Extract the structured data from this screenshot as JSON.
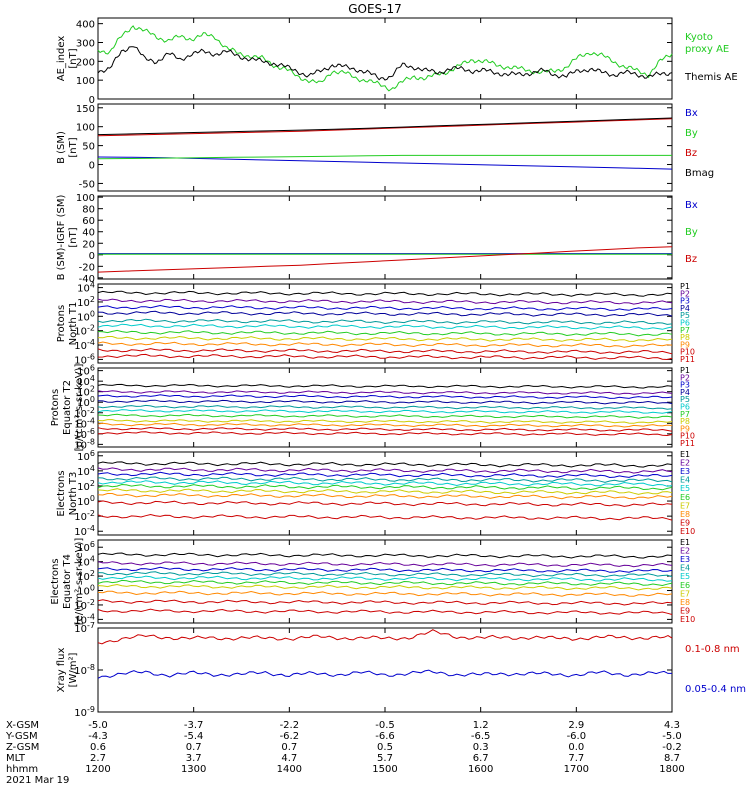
{
  "title": "GOES-17",
  "colors": {
    "black": "#000000",
    "red": "#cc0000",
    "green": "#22cc22",
    "blue": "#0000cc",
    "darkblue": "#000099",
    "cyan": "#00cccc",
    "yellow": "#cccc00",
    "orange": "#ff8800",
    "purple": "#660099",
    "magenta": "#cc00cc",
    "teal": "#009999"
  },
  "chart_data": [
    {
      "type": "line",
      "id": "ae",
      "ylabel": [
        "AE_index",
        "[nT]"
      ],
      "yticks": [
        "400",
        "300",
        "200",
        "100",
        "0"
      ],
      "ylim": [
        0,
        430
      ],
      "series": [
        {
          "name": "Kyoto proxy AE",
          "label_lines": [
            "Kyoto",
            "proxy AE"
          ],
          "color": "#22cc22",
          "values": [
            260,
            250,
            330,
            390,
            360,
            330,
            310,
            330,
            320,
            340,
            330,
            270,
            240,
            230,
            215,
            180,
            160,
            120,
            100,
            80,
            150,
            140,
            110,
            100,
            75,
            55,
            90,
            120,
            110,
            130,
            150,
            180,
            210,
            200,
            180,
            170,
            160,
            150,
            140,
            150,
            170,
            220,
            250,
            230,
            200,
            170,
            150,
            130,
            200,
            240
          ]
        },
        {
          "name": "Themis AE",
          "label_lines": [
            "Themis AE"
          ],
          "color": "#000000",
          "values": [
            150,
            160,
            250,
            290,
            210,
            200,
            240,
            210,
            240,
            250,
            240,
            250,
            230,
            210,
            200,
            190,
            170,
            150,
            120,
            150,
            180,
            170,
            160,
            140,
            110,
            120,
            180,
            170,
            150,
            140,
            160,
            160,
            150,
            150,
            140,
            130,
            130,
            140,
            150,
            130,
            120,
            150,
            160,
            140,
            130,
            140,
            130,
            120,
            130,
            140
          ]
        }
      ]
    },
    {
      "type": "line",
      "id": "b",
      "ylabel": [
        "B (SM)",
        "[nT]"
      ],
      "yticks": [
        "150",
        "100",
        "50",
        "0",
        "-50"
      ],
      "ylim": [
        -70,
        160
      ],
      "series": [
        {
          "name": "Bx",
          "color": "#0000cc",
          "values": [
            20,
            19,
            18,
            16,
            14,
            12,
            10,
            8,
            6,
            4,
            2,
            0,
            -2,
            -4,
            -6,
            -8,
            -10,
            -12
          ]
        },
        {
          "name": "By",
          "color": "#22cc22",
          "values": [
            15,
            16,
            17,
            18,
            19,
            20,
            21,
            22,
            23,
            24,
            24,
            24,
            24,
            24,
            24,
            24,
            24,
            24
          ]
        },
        {
          "name": "Bz",
          "color": "#cc0000",
          "values": [
            76,
            78,
            80,
            82,
            84,
            86,
            88,
            91,
            94,
            97,
            100,
            103,
            106,
            109,
            112,
            115,
            118,
            121
          ]
        },
        {
          "name": "Bmag",
          "color": "#000000",
          "values": [
            79,
            81,
            83,
            85,
            87,
            89,
            91,
            93,
            96,
            99,
            102,
            105,
            108,
            111,
            114,
            117,
            120,
            123
          ]
        }
      ]
    },
    {
      "type": "line",
      "id": "dbigrf",
      "ylabel": [
        "B (SM)-IGRF (SM)",
        "[nT]"
      ],
      "yticks": [
        "100",
        "80",
        "60",
        "40",
        "20",
        "0",
        "-20",
        "-40"
      ],
      "ylim": [
        -42,
        102
      ],
      "series": [
        {
          "name": "Bx",
          "color": "#0000cc",
          "values": [
            2,
            2,
            2,
            2,
            2,
            2,
            2,
            2,
            2,
            2,
            2,
            2,
            2,
            2,
            2,
            2,
            2,
            2
          ]
        },
        {
          "name": "By",
          "color": "#22cc22",
          "values": [
            1,
            1,
            1,
            1,
            1,
            1,
            1,
            1,
            1,
            1,
            1,
            1,
            1,
            1,
            1,
            1,
            1,
            1
          ]
        },
        {
          "name": "Bz",
          "color": "#cc0000",
          "values": [
            -30,
            -28,
            -26,
            -24,
            -22,
            -20,
            -18,
            -15,
            -12,
            -9,
            -6,
            -3,
            0,
            3,
            6,
            9,
            12,
            14
          ]
        }
      ]
    },
    {
      "type": "line",
      "id": "pn",
      "ylabel": [
        "Protons",
        "North T1"
      ],
      "yticks": [
        "10^4",
        "10^2",
        "10^0",
        "10^-2",
        "10^-4",
        "10^-6"
      ],
      "ylog": true,
      "ylim": [
        -6.5,
        4.5
      ],
      "series": [
        {
          "name": "P1",
          "color": "#000000",
          "level": 3.3
        },
        {
          "name": "P2",
          "color": "#660099",
          "level": 2.2
        },
        {
          "name": "P3",
          "color": "#0000cc",
          "level": 1.3
        },
        {
          "name": "P4",
          "color": "#000099",
          "level": 0.5
        },
        {
          "name": "P5",
          "color": "#009999",
          "level": -0.6
        },
        {
          "name": "P6",
          "color": "#00cccc",
          "level": -1.3
        },
        {
          "name": "P7",
          "color": "#22cc22",
          "level": -2.2
        },
        {
          "name": "P8",
          "color": "#cccc00",
          "level": -3.0
        },
        {
          "name": "P9",
          "color": "#ff8800",
          "level": -3.8
        },
        {
          "name": "P10",
          "color": "#cc0000",
          "level": -4.7
        },
        {
          "name": "P11",
          "color": "#cc0000",
          "level": -5.5
        }
      ]
    },
    {
      "type": "line",
      "id": "pe",
      "ylabel": [
        "Protons",
        "Equator T2",
        "[p/(cm²-s-sr-keV)]"
      ],
      "yticks": [
        "10^6",
        "10^4",
        "10^2",
        "10^0",
        "10^-2",
        "10^-4",
        "10^-6",
        "10^-8"
      ],
      "ylog": true,
      "ylim": [
        -8.5,
        6.5
      ],
      "series": [
        {
          "name": "P1",
          "color": "#000000",
          "level": 3.2
        },
        {
          "name": "P2",
          "color": "#660099",
          "level": 2.0
        },
        {
          "name": "P3",
          "color": "#0000cc",
          "level": 1.2
        },
        {
          "name": "P4",
          "color": "#000099",
          "level": 0.2
        },
        {
          "name": "P5",
          "color": "#009999",
          "level": -0.8
        },
        {
          "name": "P6",
          "color": "#00cccc",
          "level": -1.6
        },
        {
          "name": "P7",
          "color": "#22cc22",
          "level": -2.5
        },
        {
          "name": "P8",
          "color": "#cccc00",
          "level": -3.5
        },
        {
          "name": "P9",
          "color": "#ff8800",
          "level": -4.2
        },
        {
          "name": "P10",
          "color": "#cc0000",
          "level": -5.0
        },
        {
          "name": "P11",
          "color": "#cc0000",
          "level": -5.8
        }
      ]
    },
    {
      "type": "line",
      "id": "en",
      "ylabel": [
        "Electrons",
        "North T3"
      ],
      "yticks": [
        "10^6",
        "10^4",
        "10^2",
        "10^0",
        "10^-2",
        "10^-4"
      ],
      "ylog": true,
      "ylim": [
        -4.5,
        6.5
      ],
      "series": [
        {
          "name": "E1",
          "color": "#000000",
          "level": 5.0
        },
        {
          "name": "E2",
          "color": "#660099",
          "level": 4.2
        },
        {
          "name": "E3",
          "color": "#0000cc",
          "level": 3.6
        },
        {
          "name": "E4",
          "color": "#009999",
          "level": 3.0
        },
        {
          "name": "E5",
          "color": "#00cccc",
          "level": 2.5
        },
        {
          "name": "E6",
          "color": "#22cc22",
          "level": 2.0
        },
        {
          "name": "E7",
          "color": "#cccc00",
          "level": 1.4
        },
        {
          "name": "E8",
          "color": "#ff8800",
          "level": 0.8
        },
        {
          "name": "E9",
          "color": "#cc0000",
          "level": -0.2
        },
        {
          "name": "E10",
          "color": "#cc0000",
          "level": -2.0
        }
      ]
    },
    {
      "type": "line",
      "id": "ee",
      "ylabel": [
        "Electrons",
        "Equator T4",
        "[e/(cm²-s-sr-keV)]"
      ],
      "yticks": [
        "10^6",
        "10^4",
        "10^2",
        "10^0",
        "10^-2",
        "10^-4"
      ],
      "ylog": true,
      "ylim": [
        -4.5,
        7
      ],
      "series": [
        {
          "name": "E1",
          "color": "#000000",
          "level": 5.0
        },
        {
          "name": "E2",
          "color": "#660099",
          "level": 3.8
        },
        {
          "name": "E3",
          "color": "#0000cc",
          "level": 3.0
        },
        {
          "name": "E4",
          "color": "#009999",
          "level": 2.4
        },
        {
          "name": "E5",
          "color": "#00cccc",
          "level": 1.8
        },
        {
          "name": "E6",
          "color": "#22cc22",
          "level": 1.2
        },
        {
          "name": "E7",
          "color": "#cccc00",
          "level": 0.6
        },
        {
          "name": "E8",
          "color": "#ff8800",
          "level": -0.3
        },
        {
          "name": "E9",
          "color": "#cc0000",
          "level": -1.5
        },
        {
          "name": "E10",
          "color": "#cc0000",
          "level": -2.8
        }
      ]
    },
    {
      "type": "line",
      "id": "xray",
      "ylabel": [
        "Xray flux",
        "[W/m²]"
      ],
      "yticks": [
        "10^-7",
        "10^-8",
        "10^-9"
      ],
      "ylog": true,
      "ylim": [
        -9,
        -7
      ],
      "series": [
        {
          "name": "0.1-0.8 nm",
          "color": "#cc0000",
          "values": [
            -7.35,
            -7.25,
            -7.2,
            -7.22,
            -7.25,
            -7.24,
            -7.23,
            -7.25,
            -7.24,
            -7.22,
            -7.23,
            -7.24,
            -7.25,
            -7.22,
            -7.1,
            -7.2,
            -7.24,
            -7.23,
            -7.22,
            -7.25,
            -7.24,
            -7.23,
            -7.22,
            -7.23,
            -7.24
          ]
        },
        {
          "name": "0.05-0.4 nm",
          "color": "#0000cc",
          "values": [
            -8.15,
            -8.1,
            -8.05,
            -8.12,
            -8.08,
            -8.1,
            -8.11,
            -8.06,
            -8.12,
            -8.09,
            -8.1,
            -8.07,
            -8.11,
            -8.08,
            -8.05,
            -8.1,
            -8.12,
            -8.08,
            -8.09,
            -8.1,
            -8.11,
            -8.07,
            -8.1,
            -8.09,
            -8.08
          ]
        }
      ]
    }
  ],
  "xaxis": {
    "row_labels": [
      "X-GSM",
      "Y-GSM",
      "Z-GSM",
      "MLT",
      "hhmm"
    ],
    "columns": [
      [
        "-5.0",
        "-4.3",
        "0.6",
        "2.7",
        "1200"
      ],
      [
        "-3.7",
        "-5.4",
        "0.7",
        "3.7",
        "1300"
      ],
      [
        "-2.2",
        "-6.2",
        "0.7",
        "4.7",
        "1400"
      ],
      [
        "-0.5",
        "-6.6",
        "0.5",
        "5.7",
        "1500"
      ],
      [
        "1.2",
        "-6.5",
        "0.3",
        "6.7",
        "1600"
      ],
      [
        "2.9",
        "-6.0",
        "0.0",
        "7.7",
        "1700"
      ],
      [
        "4.3",
        "-5.0",
        "-0.2",
        "8.7",
        "1800"
      ]
    ],
    "date": "2021 Mar 19"
  }
}
